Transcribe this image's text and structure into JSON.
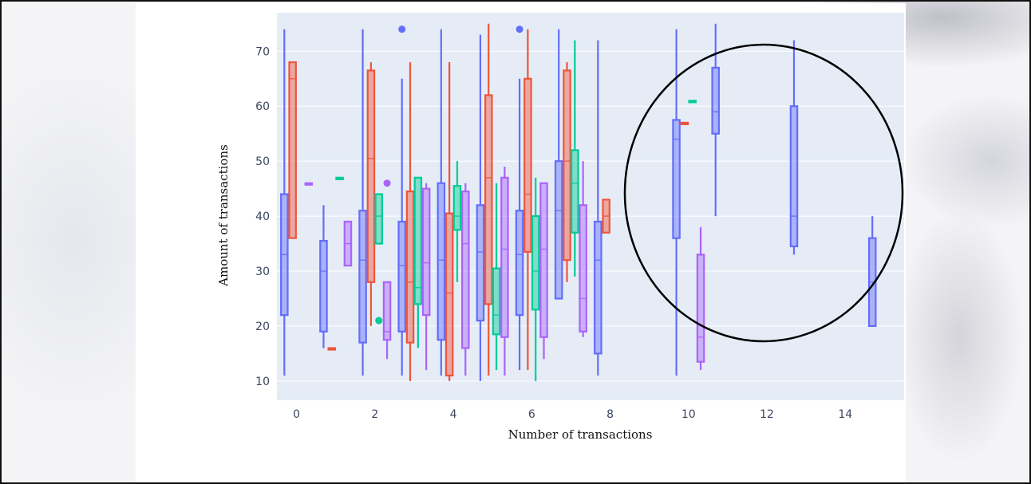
{
  "colors": {
    "plot_background": "#e5ecf6",
    "gridline": "#ffffff",
    "circle_annotation": "#000000"
  },
  "chart_data": {
    "type": "box",
    "xlabel": "Number of transactions",
    "ylabel": "Amount of transactions",
    "xlim": [
      -0.5,
      15.5
    ],
    "ylim": [
      6.5,
      77
    ],
    "x_ticks": [
      0,
      2,
      4,
      6,
      8,
      10,
      12,
      14
    ],
    "y_ticks": [
      10,
      20,
      30,
      40,
      50,
      60,
      70
    ],
    "grid": true,
    "legend": "none",
    "annotation": "hand-drawn circle around the boxes at 10–15 transactions",
    "series": [
      {
        "color": "#636efa",
        "boxes": [
          {
            "x": 0,
            "min": 11,
            "q1": 22,
            "median": 33,
            "q3": 44,
            "max": 74
          },
          {
            "x": 1,
            "min": 16,
            "q1": 19,
            "median": 30,
            "q3": 35.5,
            "max": 42
          },
          {
            "x": 2,
            "min": 11,
            "q1": 17,
            "median": 32,
            "q3": 41,
            "max": 74
          },
          {
            "x": 3,
            "min": 11,
            "q1": 19,
            "median": 31,
            "q3": 39,
            "max": 65,
            "outliers": [
              74
            ]
          },
          {
            "x": 4,
            "min": 11,
            "q1": 17.5,
            "median": 32,
            "q3": 46,
            "max": 74
          },
          {
            "x": 5,
            "min": 10,
            "q1": 21,
            "median": 33.5,
            "q3": 42,
            "max": 73
          },
          {
            "x": 6,
            "min": 12,
            "q1": 22,
            "median": 33,
            "q3": 41,
            "max": 65,
            "outliers": [
              74
            ]
          },
          {
            "x": 7,
            "min": 25,
            "q1": 25,
            "median": 41,
            "q3": 50,
            "max": 74
          },
          {
            "x": 8,
            "min": 11,
            "q1": 15,
            "median": 32,
            "q3": 39,
            "max": 72
          },
          {
            "x": 10,
            "min": 11,
            "q1": 36,
            "median": 54,
            "q3": 57.5,
            "max": 74
          },
          {
            "x": 11,
            "min": 40,
            "q1": 55,
            "median": 59,
            "q3": 67,
            "max": 75
          },
          {
            "x": 13,
            "min": 33,
            "q1": 34.5,
            "median": 40,
            "q3": 60,
            "max": 72
          },
          {
            "x": 15,
            "min": 20,
            "q1": 20,
            "median": 28,
            "q3": 36,
            "max": 40
          }
        ]
      },
      {
        "color": "#ef553b",
        "boxes": [
          {
            "x": 0,
            "min": 36,
            "q1": 36,
            "median": 65,
            "q3": 68,
            "max": 68
          },
          {
            "x": 1,
            "min": 16,
            "q1": 16,
            "median": 16,
            "q3": 16,
            "max": 16
          },
          {
            "x": 2,
            "min": 20,
            "q1": 28,
            "median": 50.5,
            "q3": 66.5,
            "max": 68
          },
          {
            "x": 3,
            "min": 10,
            "q1": 17,
            "median": 28,
            "q3": 44.5,
            "max": 68
          },
          {
            "x": 4,
            "min": 10,
            "q1": 11,
            "median": 26,
            "q3": 40.5,
            "max": 68
          },
          {
            "x": 5,
            "min": 11,
            "q1": 24,
            "median": 47,
            "q3": 62,
            "max": 75
          },
          {
            "x": 6,
            "min": 12,
            "q1": 33.5,
            "median": 44,
            "q3": 65,
            "max": 74
          },
          {
            "x": 7,
            "min": 28,
            "q1": 32,
            "median": 50,
            "q3": 66.5,
            "max": 68
          },
          {
            "x": 8,
            "min": 37,
            "q1": 37,
            "median": 40,
            "q3": 43,
            "max": 43
          },
          {
            "x": 10,
            "min": 57,
            "q1": 57,
            "median": 57,
            "q3": 57,
            "max": 57
          }
        ]
      },
      {
        "color": "#00cc96",
        "boxes": [
          {
            "x": 1,
            "min": 47,
            "q1": 47,
            "median": 47,
            "q3": 47,
            "max": 47
          },
          {
            "x": 2,
            "min": 35,
            "q1": 35,
            "median": 40,
            "q3": 44,
            "max": 44,
            "outliers": [
              21
            ]
          },
          {
            "x": 3,
            "min": 16,
            "q1": 24,
            "median": 27,
            "q3": 47,
            "max": 47
          },
          {
            "x": 4,
            "min": 28,
            "q1": 37.5,
            "median": 40,
            "q3": 45.5,
            "max": 50
          },
          {
            "x": 5,
            "min": 12,
            "q1": 18.5,
            "median": 22,
            "q3": 30.5,
            "max": 46
          },
          {
            "x": 6,
            "min": 10,
            "q1": 23,
            "median": 30,
            "q3": 40,
            "max": 47
          },
          {
            "x": 7,
            "min": 29,
            "q1": 37,
            "median": 46,
            "q3": 52,
            "max": 72
          },
          {
            "x": 10,
            "min": 61,
            "q1": 61,
            "median": 61,
            "q3": 61,
            "max": 61
          }
        ]
      },
      {
        "color": "#ab63fa",
        "boxes": [
          {
            "x": 0,
            "min": 46,
            "q1": 46,
            "median": 46,
            "q3": 46,
            "max": 46
          },
          {
            "x": 1,
            "min": 31,
            "q1": 31,
            "median": 35,
            "q3": 39,
            "max": 39
          },
          {
            "x": 2,
            "min": 14,
            "q1": 17.5,
            "median": 19,
            "q3": 28,
            "max": 28,
            "outliers": [
              46
            ]
          },
          {
            "x": 3,
            "min": 12,
            "q1": 22,
            "median": 31.5,
            "q3": 45,
            "max": 46
          },
          {
            "x": 4,
            "min": 11,
            "q1": 16,
            "median": 35,
            "q3": 44.5,
            "max": 46
          },
          {
            "x": 5,
            "min": 11,
            "q1": 18,
            "median": 34,
            "q3": 47,
            "max": 49
          },
          {
            "x": 6,
            "min": 14,
            "q1": 18,
            "median": 34,
            "q3": 46,
            "max": 46
          },
          {
            "x": 7,
            "min": 18,
            "q1": 19,
            "median": 25,
            "q3": 42,
            "max": 50
          },
          {
            "x": 10,
            "min": 12,
            "q1": 13.5,
            "median": 18,
            "q3": 33,
            "max": 38
          }
        ]
      }
    ]
  }
}
